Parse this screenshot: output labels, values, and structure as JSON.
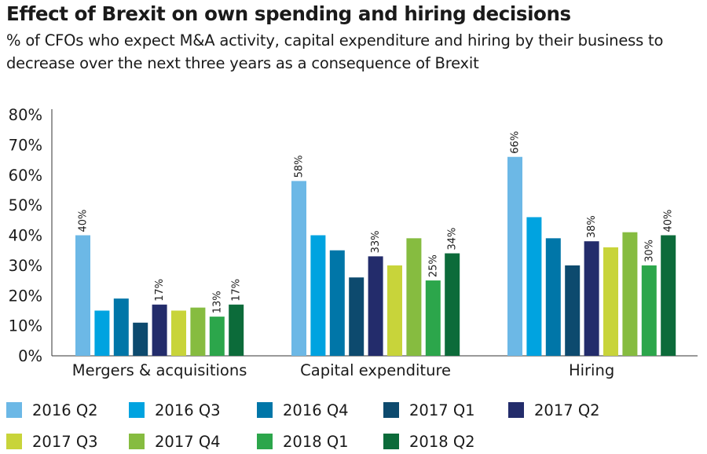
{
  "header": {
    "title": "Effect of Brexit on own spending and hiring decisions",
    "subtitle": "% of CFOs who expect M&A activity, capital expenditure and hiring by their business to decrease over the next three years as a consequence of Brexit"
  },
  "chart_data": {
    "type": "bar",
    "title": "Effect of Brexit on own spending and hiring decisions",
    "subtitle": "% of CFOs who expect M&A activity, capital expenditure and hiring by their business to decrease over the next three years as a consequence of Brexit",
    "categories": [
      "Mergers & acquisitions",
      "Capital expenditure",
      "Hiring"
    ],
    "ylim": [
      0,
      80
    ],
    "yticks": [
      0,
      10,
      20,
      30,
      40,
      50,
      60,
      70,
      80
    ],
    "ytick_labels": [
      "0%",
      "10%",
      "20%",
      "30%",
      "40%",
      "50%",
      "60%",
      "70%",
      "80%"
    ],
    "grid": false,
    "legend_position": "bottom",
    "series": [
      {
        "name": "2016 Q2",
        "color": "#6cb8e6",
        "values": [
          40,
          58,
          66
        ],
        "labels": [
          "40%",
          "58%",
          "66%"
        ]
      },
      {
        "name": "2016 Q3",
        "color": "#00a3e0",
        "values": [
          15,
          40,
          46
        ],
        "labels": [
          null,
          null,
          null
        ]
      },
      {
        "name": "2016 Q4",
        "color": "#0076a8",
        "values": [
          19,
          35,
          39
        ],
        "labels": [
          null,
          null,
          null
        ]
      },
      {
        "name": "2017 Q1",
        "color": "#0d4a6e",
        "values": [
          11,
          26,
          30
        ],
        "labels": [
          null,
          null,
          null
        ]
      },
      {
        "name": "2017 Q2",
        "color": "#232c6b",
        "values": [
          17,
          33,
          38
        ],
        "labels": [
          "17%",
          "33%",
          "38%"
        ]
      },
      {
        "name": "2017 Q3",
        "color": "#c8d43a",
        "values": [
          15,
          30,
          36
        ],
        "labels": [
          null,
          null,
          null
        ]
      },
      {
        "name": "2017 Q4",
        "color": "#86bc40",
        "values": [
          16,
          39,
          41
        ],
        "labels": [
          null,
          null,
          null
        ]
      },
      {
        "name": "2018 Q1",
        "color": "#2ca64b",
        "values": [
          13,
          25,
          30
        ],
        "labels": [
          "13%",
          "25%",
          "30%"
        ]
      },
      {
        "name": "2018 Q2",
        "color": "#0c6b3a",
        "values": [
          17,
          34,
          40
        ],
        "labels": [
          "17%",
          "34%",
          "40%"
        ]
      }
    ]
  }
}
